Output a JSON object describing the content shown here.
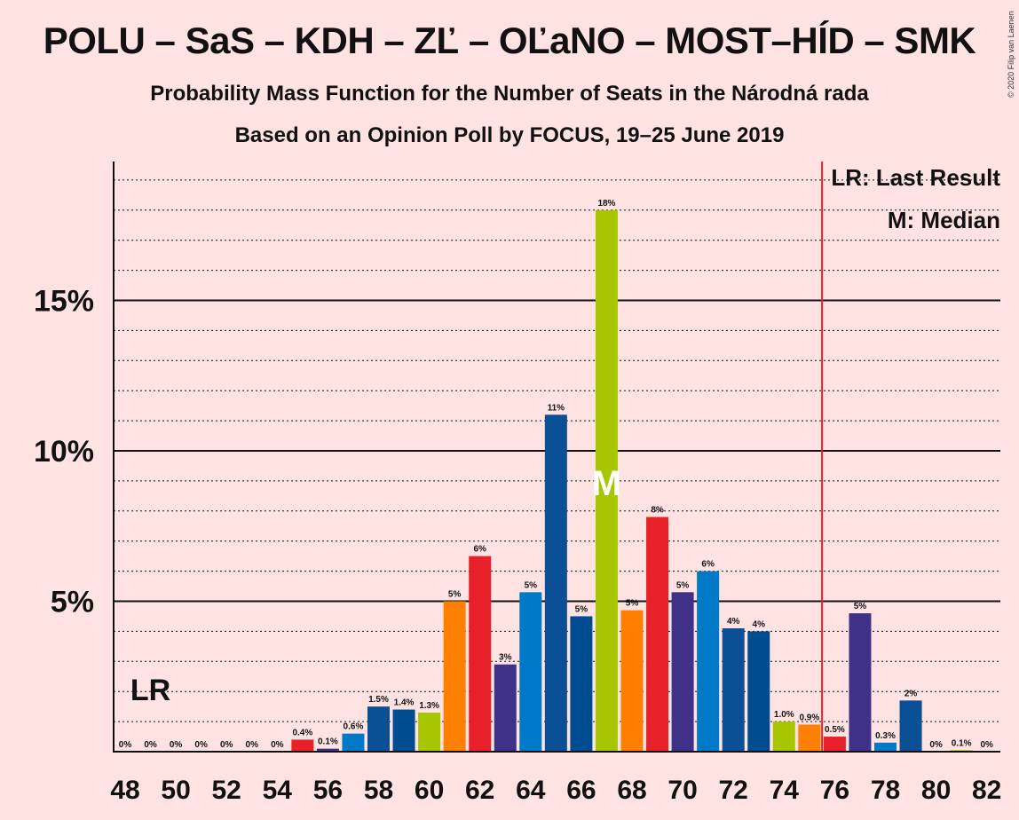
{
  "title": "POLU – SaS – KDH – ZĽ – OĽaNO – MOST–HÍD – SMK",
  "subtitle1": "Probability Mass Function for the Number of Seats in the Národná rada",
  "subtitle2": "Based on an Opinion Poll by FOCUS, 19–25 June 2019",
  "copyright": "© 2020 Filip van Laenen",
  "legend": {
    "last_result": "LR: Last Result",
    "median": "M: Median"
  },
  "markers": {
    "lr_label": "LR",
    "lr_seat": 49,
    "median_label": "M",
    "median_seat": 67,
    "majority_line_seat": 75.5
  },
  "colors": {
    "background": "#FFE3E3",
    "majority_line": "#E8202A",
    "median_text": "#FFFFFF"
  },
  "chart_data": {
    "type": "bar",
    "x_min": 48,
    "x_max": 82,
    "ylim": [
      0,
      19.5
    ],
    "y_ticks": [
      {
        "value": 5,
        "label": "5%"
      },
      {
        "value": 10,
        "label": "10%"
      },
      {
        "value": 15,
        "label": "15%"
      }
    ],
    "y_dotted_step": 1,
    "x_tick_labels": [
      "48",
      "50",
      "52",
      "54",
      "56",
      "58",
      "60",
      "62",
      "64",
      "66",
      "68",
      "70",
      "72",
      "74",
      "76",
      "78",
      "80",
      "82"
    ],
    "bars": [
      {
        "seat": 48,
        "value": 0,
        "label": "0%",
        "color": "#E8202A"
      },
      {
        "seat": 49,
        "value": 0,
        "label": "0%",
        "color": "#3F3188"
      },
      {
        "seat": 50,
        "value": 0,
        "label": "0%",
        "color": "#0079C9"
      },
      {
        "seat": 51,
        "value": 0,
        "label": "0%",
        "color": "#0B4F94"
      },
      {
        "seat": 52,
        "value": 0,
        "label": "0%",
        "color": "#004C90"
      },
      {
        "seat": 53,
        "value": 0,
        "label": "0%",
        "color": "#A8C600"
      },
      {
        "seat": 54,
        "value": 0,
        "label": "0%",
        "color": "#FF7F00"
      },
      {
        "seat": 55,
        "value": 0.4,
        "label": "0.4%",
        "color": "#E8202A"
      },
      {
        "seat": 56,
        "value": 0.1,
        "label": "0.1%",
        "color": "#3F3188"
      },
      {
        "seat": 57,
        "value": 0.6,
        "label": "0.6%",
        "color": "#0079C9"
      },
      {
        "seat": 58,
        "value": 1.5,
        "label": "1.5%",
        "color": "#0B4F94"
      },
      {
        "seat": 59,
        "value": 1.4,
        "label": "1.4%",
        "color": "#004C90"
      },
      {
        "seat": 60,
        "value": 1.3,
        "label": "1.3%",
        "color": "#A8C600"
      },
      {
        "seat": 61,
        "value": 5.0,
        "label": "5%",
        "color": "#FF7F00"
      },
      {
        "seat": 62,
        "value": 6.5,
        "label": "6%",
        "color": "#E8202A"
      },
      {
        "seat": 63,
        "value": 2.9,
        "label": "3%",
        "color": "#3F3188"
      },
      {
        "seat": 64,
        "value": 5.3,
        "label": "5%",
        "color": "#0079C9"
      },
      {
        "seat": 65,
        "value": 11.2,
        "label": "11%",
        "color": "#0B4F94"
      },
      {
        "seat": 66,
        "value": 4.5,
        "label": "5%",
        "color": "#004C90"
      },
      {
        "seat": 67,
        "value": 18.0,
        "label": "18%",
        "color": "#A8C600"
      },
      {
        "seat": 68,
        "value": 4.7,
        "label": "5%",
        "color": "#FF7F00"
      },
      {
        "seat": 69,
        "value": 7.8,
        "label": "8%",
        "color": "#E8202A"
      },
      {
        "seat": 70,
        "value": 5.3,
        "label": "5%",
        "color": "#3F3188"
      },
      {
        "seat": 71,
        "value": 6.0,
        "label": "6%",
        "color": "#0079C9"
      },
      {
        "seat": 72,
        "value": 4.1,
        "label": "4%",
        "color": "#0B4F94"
      },
      {
        "seat": 73,
        "value": 4.0,
        "label": "4%",
        "color": "#004C90"
      },
      {
        "seat": 74,
        "value": 1.0,
        "label": "1.0%",
        "color": "#A8C600"
      },
      {
        "seat": 75,
        "value": 0.9,
        "label": "0.9%",
        "color": "#FF7F00"
      },
      {
        "seat": 76,
        "value": 0.5,
        "label": "0.5%",
        "color": "#E8202A"
      },
      {
        "seat": 77,
        "value": 4.6,
        "label": "5%",
        "color": "#3F3188"
      },
      {
        "seat": 78,
        "value": 0.3,
        "label": "0.3%",
        "color": "#0079C9"
      },
      {
        "seat": 79,
        "value": 1.7,
        "label": "2%",
        "color": "#0B4F94"
      },
      {
        "seat": 80,
        "value": 0,
        "label": "0%",
        "color": "#004C90"
      },
      {
        "seat": 81,
        "value": 0.05,
        "label": "0.1%",
        "color": "#A8C600"
      },
      {
        "seat": 82,
        "value": 0,
        "label": "0%",
        "color": "#FF7F00"
      }
    ]
  }
}
